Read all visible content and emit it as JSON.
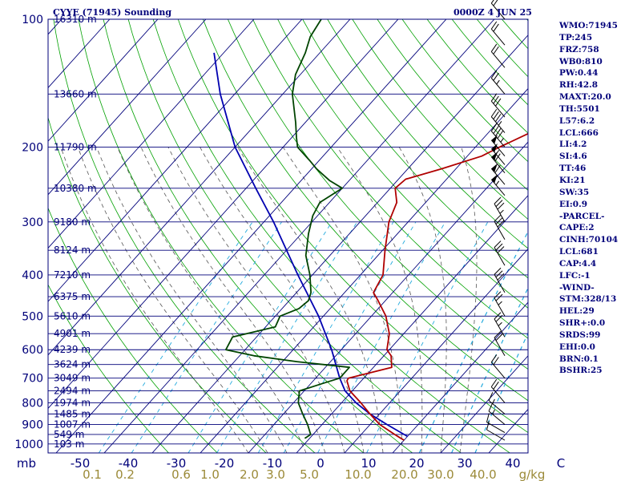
{
  "header": {
    "title": "CYYE (71945) Sounding",
    "datetime": "0000Z  4 JUN 25"
  },
  "indices": [
    "WMO:71945",
    "TP:245",
    "FRZ:758",
    "WB0:810",
    "PW:0.44",
    "RH:42.8",
    "MAXT:20.0",
    "TH:5501",
    "L57:6.2",
    "LCL:666",
    "LI:4.2",
    "SI:4.6",
    "TT:46",
    "KI:21",
    "SW:35",
    "EI:0.9",
    "-PARCEL-",
    "CAPE:2",
    "CINH:70104",
    "LCL:681",
    "CAP:4.4",
    "LFC:-1",
    "-WIND-",
    "STM:328/13",
    "HEL:29",
    "SHR+:0.0",
    "SRDS:99",
    "EHI:0.0",
    "BRN:0.1",
    "BSHR:25"
  ],
  "colors": {
    "background": "#ffffff",
    "frame": "#00007a",
    "isobar": "#00007a",
    "isotherm": "#00007a",
    "dry_adiabat": "#00a000",
    "mixing_ratio": "#22aadd",
    "moist_adiabat": "#555555",
    "temperature": "#b00000",
    "dewpoint": "#004400",
    "parcel": "#0000b0",
    "wind_barb": "#000000",
    "axis_text": "#00007a",
    "mixing_ratio_text": "#9b8a38"
  },
  "chart_data": {
    "type": "skew-t log-p sounding",
    "pressure_axis": {
      "unit": "mb",
      "range": [
        1000,
        100
      ],
      "scale": "log",
      "tick_labels": [
        "100",
        "200",
        "300",
        "400",
        "500",
        "600",
        "700",
        "800",
        "900",
        "1000"
      ]
    },
    "temperature_axis": {
      "unit": "C",
      "range": [
        -50,
        50
      ],
      "tick_labels": [
        "mb",
        "-50",
        "-40",
        "-30",
        "-20",
        "-10",
        "0",
        "10",
        "20",
        "30",
        "40",
        "C"
      ]
    },
    "height_labels": [
      {
        "p": 100,
        "label": "16310 m"
      },
      {
        "p": 150,
        "label": "13660 m"
      },
      {
        "p": 200,
        "label": "11790 m"
      },
      {
        "p": 250,
        "label": "10380 m"
      },
      {
        "p": 300,
        "label": "9180 m"
      },
      {
        "p": 350,
        "label": "8124 m"
      },
      {
        "p": 400,
        "label": "7210 m"
      },
      {
        "p": 450,
        "label": "6375 m"
      },
      {
        "p": 500,
        "label": "5610 m"
      },
      {
        "p": 550,
        "label": "4901 m"
      },
      {
        "p": 600,
        "label": "4239 m"
      },
      {
        "p": 650,
        "label": "3624 m"
      },
      {
        "p": 700,
        "label": "3049 m"
      },
      {
        "p": 750,
        "label": "2494 m"
      },
      {
        "p": 800,
        "label": "1974 m"
      },
      {
        "p": 850,
        "label": "1485 m"
      },
      {
        "p": 900,
        "label": "1007 m"
      },
      {
        "p": 950,
        "label": "549 m"
      },
      {
        "p": 1000,
        "label": "103 m"
      }
    ],
    "mixing_ratio_lines": [
      0.1,
      0.2,
      0.6,
      1.0,
      2.0,
      3.0,
      5.0,
      10.0,
      20.0,
      30.0,
      40.0
    ],
    "mixing_ratio_labels": [
      "0.1",
      "0.2",
      "0.6",
      "1.0",
      "2.0",
      "3.0",
      "5.0",
      "10.0",
      "20.0",
      "30.0",
      "40.0",
      "g/kg"
    ],
    "temperature": [
      [
        980,
        20.0
      ],
      [
        970,
        19.0
      ],
      [
        950,
        17.0
      ],
      [
        900,
        12.0
      ],
      [
        850,
        8.0
      ],
      [
        800,
        4.0
      ],
      [
        750,
        -0.5
      ],
      [
        710,
        -3.0
      ],
      [
        700,
        -3.2
      ],
      [
        660,
        3.8
      ],
      [
        620,
        1.5
      ],
      [
        600,
        -0.5
      ],
      [
        550,
        -3.0
      ],
      [
        500,
        -7.0
      ],
      [
        460,
        -11.5
      ],
      [
        440,
        -14.0
      ],
      [
        400,
        -15.3
      ],
      [
        350,
        -19.5
      ],
      [
        300,
        -24.0
      ],
      [
        270,
        -26.0
      ],
      [
        250,
        -29.0
      ],
      [
        238,
        -28.5
      ],
      [
        225,
        -23.0
      ],
      [
        210,
        -17.0
      ],
      [
        200,
        -15.0
      ],
      [
        180,
        -10.0
      ],
      [
        160,
        -6.0
      ],
      [
        150,
        -4.5
      ],
      [
        145,
        -3.5
      ],
      [
        140,
        -2.0
      ],
      [
        135,
        -1.0
      ],
      [
        130,
        3.0
      ],
      [
        120,
        4.0
      ],
      [
        115,
        10.0
      ],
      [
        110,
        13.0
      ],
      [
        105,
        18.0
      ],
      [
        100,
        25.0
      ]
    ],
    "dewpoint": [
      [
        970,
        -1.0
      ],
      [
        950,
        -0.5
      ],
      [
        900,
        -3.0
      ],
      [
        850,
        -6.0
      ],
      [
        800,
        -9.0
      ],
      [
        750,
        -11.0
      ],
      [
        720,
        -7.5
      ],
      [
        700,
        -5.0
      ],
      [
        660,
        -5.0
      ],
      [
        650,
        -11.0
      ],
      [
        640,
        -17.0
      ],
      [
        620,
        -27.0
      ],
      [
        600,
        -34.0
      ],
      [
        560,
        -35.0
      ],
      [
        530,
        -28.0
      ],
      [
        500,
        -29.0
      ],
      [
        480,
        -26.5
      ],
      [
        460,
        -26.0
      ],
      [
        440,
        -27.0
      ],
      [
        400,
        -30.5
      ],
      [
        360,
        -35.0
      ],
      [
        320,
        -38.5
      ],
      [
        290,
        -41.0
      ],
      [
        270,
        -42.0
      ],
      [
        250,
        -40.0
      ],
      [
        240,
        -44.0
      ],
      [
        225,
        -49.0
      ],
      [
        215,
        -52.0
      ],
      [
        200,
        -57.0
      ],
      [
        190,
        -59.0
      ],
      [
        175,
        -62.0
      ],
      [
        150,
        -68.0
      ],
      [
        135,
        -71.0
      ],
      [
        120,
        -73.0
      ],
      [
        110,
        -75.0
      ],
      [
        100,
        -76.0
      ]
    ],
    "parcel": [
      [
        960,
        20.0
      ],
      [
        900,
        13.5
      ],
      [
        850,
        8.0
      ],
      [
        800,
        3.0
      ],
      [
        750,
        -1.5
      ],
      [
        700,
        -5.0
      ],
      [
        600,
        -12.0
      ],
      [
        500,
        -21.0
      ],
      [
        400,
        -33.0
      ],
      [
        300,
        -48.0
      ],
      [
        250,
        -58.0
      ],
      [
        200,
        -70.0
      ],
      [
        150,
        -83.0
      ],
      [
        120,
        -92.0
      ]
    ],
    "wind_barbs": [
      {
        "p": 980,
        "dir": 300,
        "spd": 10
      },
      {
        "p": 940,
        "dir": 300,
        "spd": 10
      },
      {
        "p": 900,
        "dir": 310,
        "spd": 15
      },
      {
        "p": 850,
        "dir": 310,
        "spd": 15
      },
      {
        "p": 800,
        "dir": 320,
        "spd": 20
      },
      {
        "p": 700,
        "dir": 320,
        "spd": 20
      },
      {
        "p": 620,
        "dir": 330,
        "spd": 20
      },
      {
        "p": 560,
        "dir": 330,
        "spd": 25
      },
      {
        "p": 500,
        "dir": 330,
        "spd": 25
      },
      {
        "p": 440,
        "dir": 330,
        "spd": 30
      },
      {
        "p": 380,
        "dir": 330,
        "spd": 30
      },
      {
        "p": 330,
        "dir": 330,
        "spd": 30
      },
      {
        "p": 300,
        "dir": 330,
        "spd": 35
      },
      {
        "p": 260,
        "dir": 320,
        "spd": 55
      },
      {
        "p": 245,
        "dir": 320,
        "spd": 60
      },
      {
        "p": 230,
        "dir": 320,
        "spd": 60
      },
      {
        "p": 220,
        "dir": 320,
        "spd": 55
      },
      {
        "p": 210,
        "dir": 320,
        "spd": 50
      },
      {
        "p": 200,
        "dir": 320,
        "spd": 45
      },
      {
        "p": 185,
        "dir": 320,
        "spd": 35
      },
      {
        "p": 170,
        "dir": 320,
        "spd": 30
      },
      {
        "p": 150,
        "dir": 320,
        "spd": 25
      },
      {
        "p": 130,
        "dir": 320,
        "spd": 20
      },
      {
        "p": 115,
        "dir": 320,
        "spd": 20
      },
      {
        "p": 100,
        "dir": 320,
        "spd": 20
      }
    ],
    "grid": true
  }
}
